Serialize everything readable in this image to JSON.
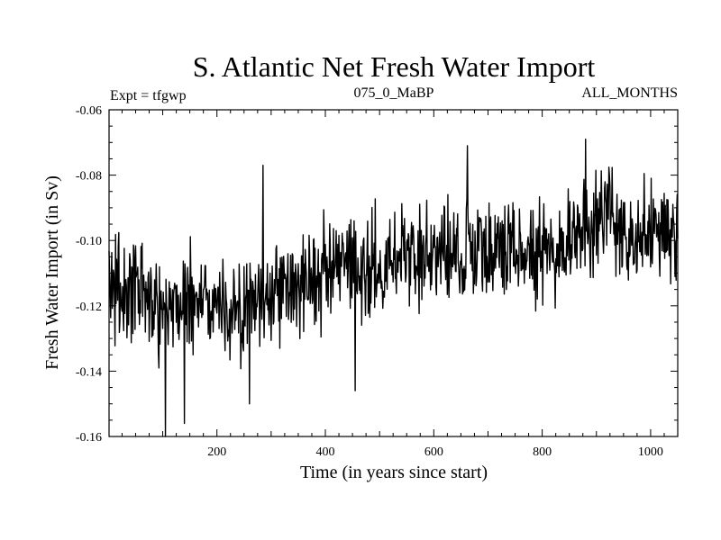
{
  "chart_data": {
    "type": "line",
    "title": "S. Atlantic Net Fresh Water Import",
    "subtitle_left": "Expt = tfgwp",
    "subtitle_center": "075_0_MaBP",
    "subtitle_right": "ALL_MONTHS",
    "xlabel": "Time (in years since start)",
    "ylabel": "Fresh Water Import (in Sv)",
    "xlim": [
      1,
      1050
    ],
    "ylim": [
      -0.16,
      -0.06
    ],
    "x_ticks": [
      200,
      400,
      600,
      800,
      1000
    ],
    "x_tick_labels": [
      "200",
      "400",
      "600",
      "800",
      "1000"
    ],
    "y_ticks": [
      -0.16,
      -0.14,
      -0.12,
      -0.1,
      -0.08,
      -0.06
    ],
    "y_tick_labels": [
      "-0.16",
      "-0.14",
      "-0.12",
      "-0.10",
      "-0.08",
      "-0.06"
    ],
    "grid": false,
    "series": [
      {
        "name": "Net Fresh Water Import",
        "color": "#000000",
        "x": [
          1,
          25,
          50,
          75,
          100,
          125,
          150,
          175,
          200,
          225,
          250,
          275,
          300,
          325,
          350,
          375,
          400,
          425,
          450,
          475,
          500,
          525,
          550,
          575,
          600,
          625,
          650,
          675,
          700,
          725,
          750,
          775,
          800,
          825,
          850,
          875,
          900,
          925,
          950,
          975,
          1000,
          1025,
          1050
        ],
        "values": [
          -0.112,
          -0.117,
          -0.114,
          -0.119,
          -0.118,
          -0.12,
          -0.117,
          -0.118,
          -0.119,
          -0.121,
          -0.124,
          -0.118,
          -0.115,
          -0.115,
          -0.113,
          -0.111,
          -0.112,
          -0.108,
          -0.11,
          -0.107,
          -0.108,
          -0.104,
          -0.106,
          -0.105,
          -0.104,
          -0.103,
          -0.104,
          -0.102,
          -0.104,
          -0.103,
          -0.103,
          -0.102,
          -0.103,
          -0.101,
          -0.099,
          -0.1,
          -0.094,
          -0.091,
          -0.096,
          -0.097,
          -0.098,
          -0.097,
          -0.096
        ],
        "notable_points": [
          {
            "x": 105,
            "y": -0.16
          },
          {
            "x": 140,
            "y": -0.156
          },
          {
            "x": 260,
            "y": -0.15
          },
          {
            "x": 285,
            "y": -0.077
          },
          {
            "x": 455,
            "y": -0.146
          },
          {
            "x": 662,
            "y": -0.071
          },
          {
            "x": 880,
            "y": -0.069
          }
        ]
      }
    ]
  }
}
